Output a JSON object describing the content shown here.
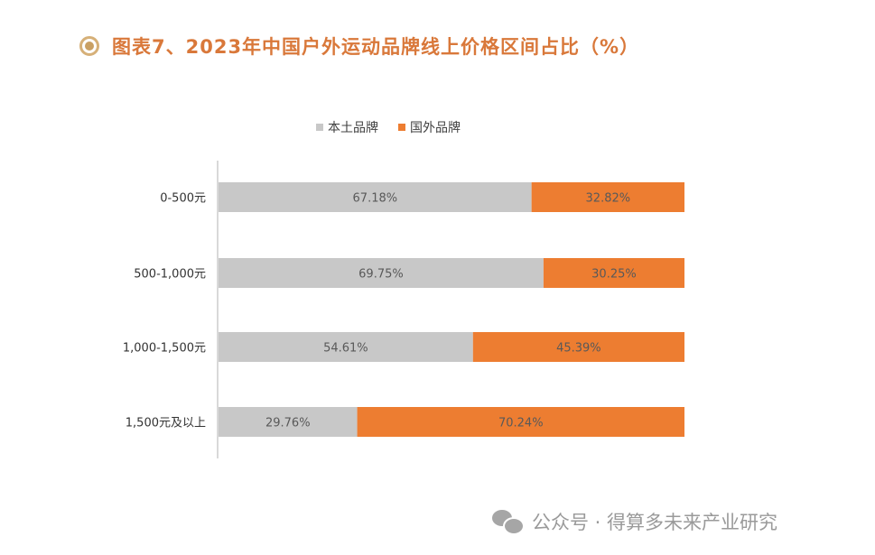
{
  "header": {
    "title": "图表7、2023年中国户外运动品牌线上价格区间占比（%）",
    "icon": "target-circle-icon"
  },
  "footer": {
    "icon": "wechat-icon",
    "text": "公众号 · 得算多未来产业研究"
  },
  "colors": {
    "title": "#d9783a",
    "series_domestic": "#c8c8c8",
    "series_foreign": "#ed7d31",
    "axis": "#d9d9d9"
  },
  "chart_data": {
    "type": "bar",
    "orientation": "horizontal",
    "stacked": "percent",
    "title": "图表7、2023年中国户外运动品牌线上价格区间占比（%）",
    "xlabel": "",
    "ylabel": "",
    "xlim": [
      0,
      100
    ],
    "grid": false,
    "legend_position": "top",
    "categories": [
      "0-500元",
      "500-1,000元",
      "1,000-1,500元",
      "1,500元及以上"
    ],
    "series": [
      {
        "name": "本土品牌",
        "color": "#c8c8c8",
        "values": [
          67.18,
          69.75,
          54.61,
          29.76
        ],
        "labels": [
          "67.18%",
          "69.75%",
          "54.61%",
          "29.76%"
        ]
      },
      {
        "name": "国外品牌",
        "color": "#ed7d31",
        "values": [
          32.82,
          30.25,
          45.39,
          70.24
        ],
        "labels": [
          "32.82%",
          "30.25%",
          "45.39%",
          "70.24%"
        ]
      }
    ]
  }
}
